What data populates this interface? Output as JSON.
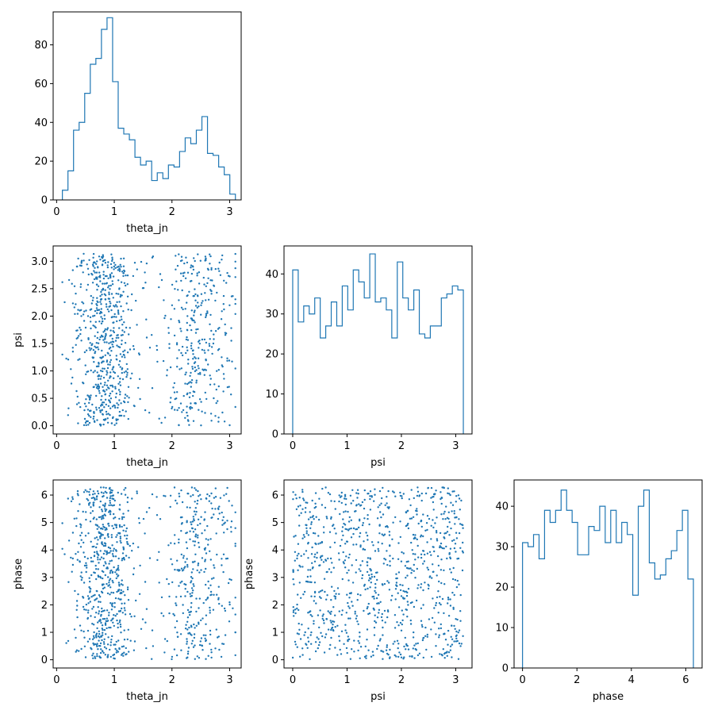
{
  "chart_data": [
    {
      "id": "hist-theta_jn",
      "type": "histogram",
      "xlabel": "theta_jn",
      "ylabel": "",
      "xlim": [
        -0.06,
        3.2
      ],
      "ylim": [
        0,
        97
      ],
      "xticks": [
        0,
        1,
        2,
        3
      ],
      "yticks": [
        0,
        20,
        40,
        60,
        80
      ],
      "bin_range": [
        0.1,
        3.1
      ],
      "counts": [
        5,
        15,
        36,
        40,
        55,
        70,
        73,
        88,
        94,
        61,
        37,
        34,
        31,
        22,
        18,
        20,
        10,
        14,
        11,
        18,
        17,
        25,
        32,
        29,
        36,
        43,
        24,
        23,
        17,
        13,
        3
      ]
    },
    {
      "id": "scatter-theta_jn-psi",
      "type": "scatter",
      "xlabel": "theta_jn",
      "ylabel": "psi",
      "xlim": [
        -0.06,
        3.2
      ],
      "ylim": [
        -0.15,
        3.28
      ],
      "xticks": [
        0,
        1,
        2,
        3
      ],
      "yticks": [
        0.0,
        0.5,
        1.0,
        1.5,
        2.0,
        2.5,
        3.0
      ],
      "note_points": "approximately 1000 samples, theta_jn bimodal near 0.8 and 2.5, psi uniform on [0, 3.14]"
    },
    {
      "id": "hist-psi",
      "type": "histogram",
      "xlabel": "psi",
      "ylabel": "",
      "xlim": [
        -0.16,
        3.3
      ],
      "ylim": [
        0,
        47
      ],
      "xticks": [
        0,
        1,
        2,
        3
      ],
      "yticks": [
        0,
        10,
        20,
        30,
        40
      ],
      "bin_range": [
        0,
        3.14
      ],
      "counts": [
        41,
        28,
        32,
        30,
        34,
        24,
        27,
        33,
        27,
        37,
        31,
        41,
        38,
        34,
        45,
        33,
        34,
        31,
        24,
        43,
        34,
        31,
        36,
        25,
        24,
        27,
        27,
        34,
        35,
        37,
        36
      ]
    },
    {
      "id": "scatter-theta_jn-phase",
      "type": "scatter",
      "xlabel": "theta_jn",
      "ylabel": "phase",
      "xlim": [
        -0.06,
        3.2
      ],
      "ylim": [
        -0.3,
        6.55
      ],
      "xticks": [
        0,
        1,
        2,
        3
      ],
      "yticks": [
        0,
        1,
        2,
        3,
        4,
        5,
        6
      ]
    },
    {
      "id": "scatter-psi-phase",
      "type": "scatter",
      "xlabel": "psi",
      "ylabel": "phase",
      "xlim": [
        -0.16,
        3.3
      ],
      "ylim": [
        -0.3,
        6.55
      ],
      "xticks": [
        0,
        1,
        2,
        3
      ],
      "yticks": [
        0,
        1,
        2,
        3,
        4,
        5,
        6
      ]
    },
    {
      "id": "hist-phase",
      "type": "histogram",
      "xlabel": "phase",
      "ylabel": "",
      "xlim": [
        -0.31,
        6.6
      ],
      "ylim": [
        0,
        46.5
      ],
      "xticks": [
        0,
        2,
        4,
        6
      ],
      "yticks": [
        0,
        10,
        20,
        30,
        40
      ],
      "bin_range": [
        0,
        6.28
      ],
      "counts": [
        31,
        30,
        33,
        27,
        39,
        36,
        39,
        44,
        39,
        36,
        28,
        28,
        35,
        34,
        40,
        31,
        39,
        31,
        36,
        33,
        18,
        40,
        44,
        26,
        22,
        23,
        27,
        29,
        34,
        39,
        22
      ]
    }
  ]
}
